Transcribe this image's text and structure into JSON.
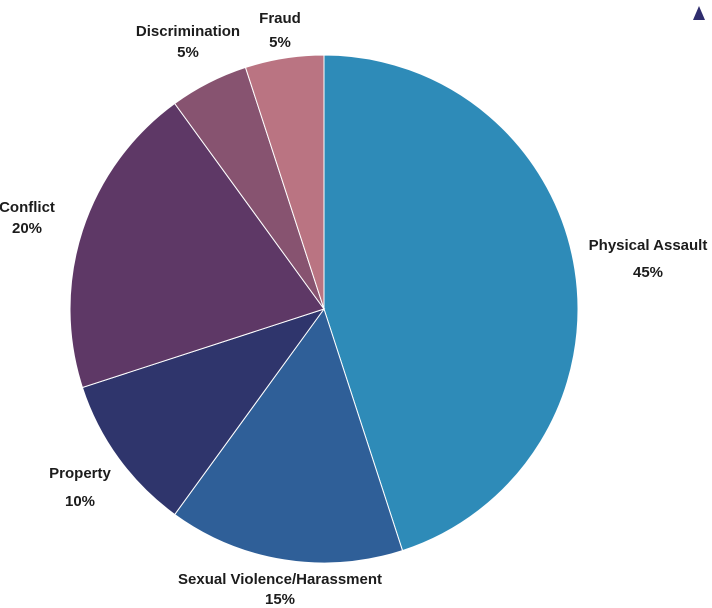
{
  "chart_data": {
    "type": "pie",
    "start": "12 o'clock",
    "direction": "clockwise",
    "slices": [
      {
        "label": "Physical Assault",
        "value": 45,
        "value_label": "45%",
        "color": "#2e8bb8"
      },
      {
        "label": "Sexual Violence/Harassment",
        "value": 15,
        "value_label": "15%",
        "color": "#2f5f98"
      },
      {
        "label": "Property",
        "value": 10,
        "value_label": "10%",
        "color": "#2f356c"
      },
      {
        "label": "Conflict",
        "value": 20,
        "value_label": "20%",
        "color": "#5e3866"
      },
      {
        "label": "Discrimination",
        "value": 5,
        "value_label": "5%",
        "color": "#875370"
      },
      {
        "label": "Fraud",
        "value": 5,
        "value_label": "5%",
        "color": "#ba7482"
      }
    ]
  }
}
